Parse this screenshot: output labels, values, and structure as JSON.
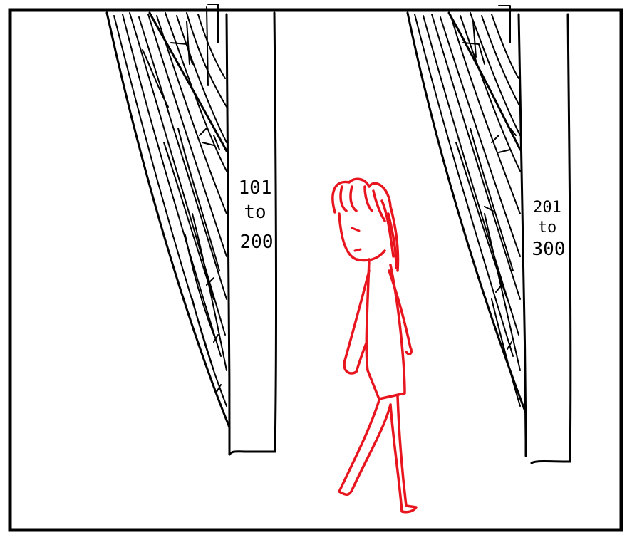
{
  "panel": {
    "stroke_color": "#000000",
    "background": "#ffffff"
  },
  "doorways": [
    {
      "name": "doorway-left",
      "label_lines": [
        "101",
        "to",
        "200"
      ]
    },
    {
      "name": "doorway-right",
      "label_lines": [
        "201",
        "to",
        "300"
      ]
    }
  ],
  "figure": {
    "description_icon": "walking-girl-icon",
    "color": "#e8141e"
  }
}
